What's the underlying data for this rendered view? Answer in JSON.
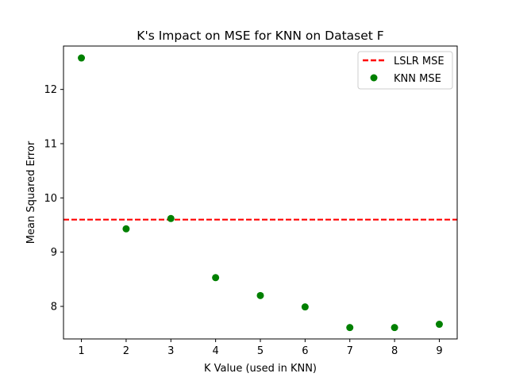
{
  "chart_data": {
    "type": "scatter",
    "title": "K's Impact on MSE for KNN on Dataset F",
    "xlabel": "K Value (used in KNN)",
    "ylabel": "Mean Squared Error",
    "xlim": [
      0.6,
      9.4
    ],
    "ylim": [
      7.4,
      12.8
    ],
    "xticks": [
      1,
      2,
      3,
      4,
      5,
      6,
      7,
      8,
      9
    ],
    "yticks": [
      8,
      9,
      10,
      11,
      12
    ],
    "grid": false,
    "legend_position": "top-right",
    "series": [
      {
        "name": "KNN MSE",
        "kind": "scatter",
        "color": "#008000",
        "x": [
          1,
          2,
          3,
          4,
          5,
          6,
          7,
          8,
          9
        ],
        "y": [
          12.58,
          9.43,
          9.62,
          8.53,
          8.2,
          7.99,
          7.61,
          7.61,
          7.67
        ]
      },
      {
        "name": "LSLR MSE",
        "kind": "hline",
        "color": "#ff0000",
        "y": 9.6
      }
    ]
  }
}
